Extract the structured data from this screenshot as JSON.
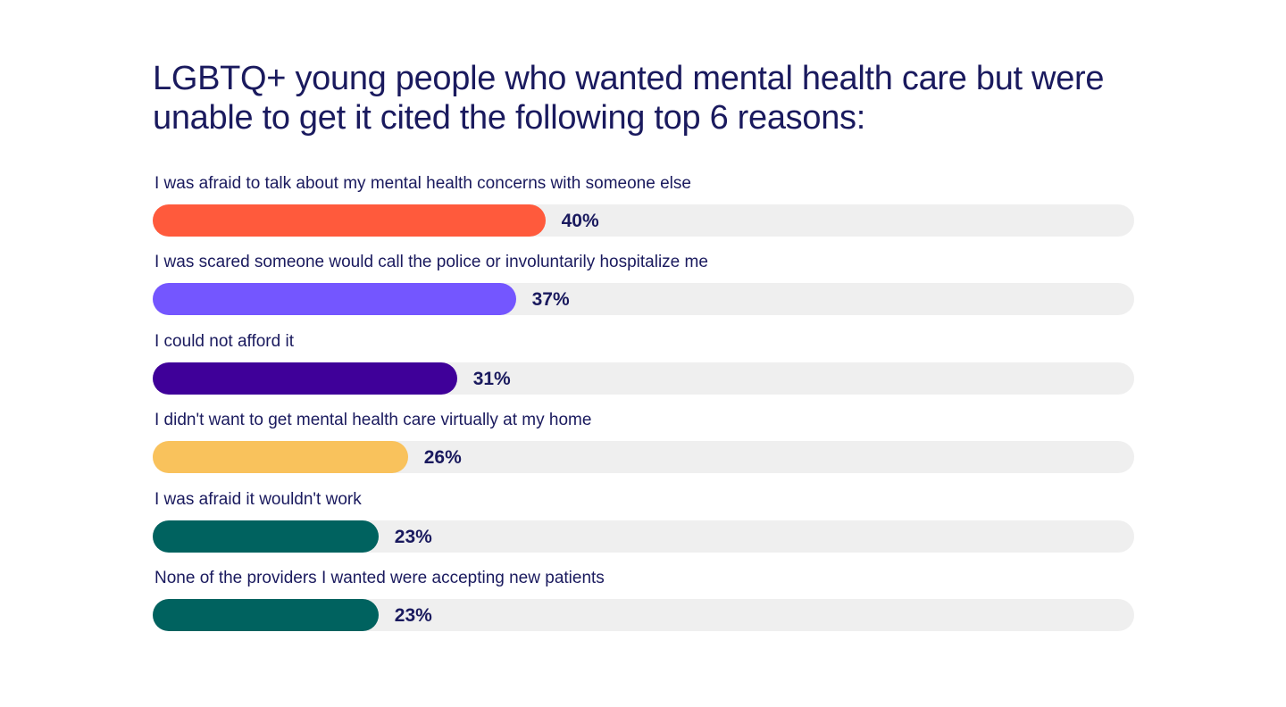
{
  "chart_data": {
    "type": "bar",
    "orientation": "horizontal",
    "title": "LGBTQ+ young people who wanted mental health care but were unable to get it cited the following top 6 reasons:",
    "categories": [
      "I was afraid to talk about my mental health concerns with someone else",
      "I was scared someone would call the police or involuntarily hospitalize me",
      "I could not afford it",
      "I didn't want to get mental health care virtually at my home",
      "I was afraid it wouldn't work",
      "None of the providers I wanted were accepting new patients"
    ],
    "values": [
      40,
      37,
      31,
      26,
      23,
      23
    ],
    "value_labels": [
      "40%",
      "37%",
      "31%",
      "26%",
      "23%",
      "23%"
    ],
    "colors": [
      "#ff5a3c",
      "#7456ff",
      "#3f0099",
      "#f9c25c",
      "#00625f",
      "#00625f"
    ],
    "track_color": "#efefef",
    "xlim": [
      0,
      100
    ],
    "grid": false,
    "legend": "none"
  }
}
